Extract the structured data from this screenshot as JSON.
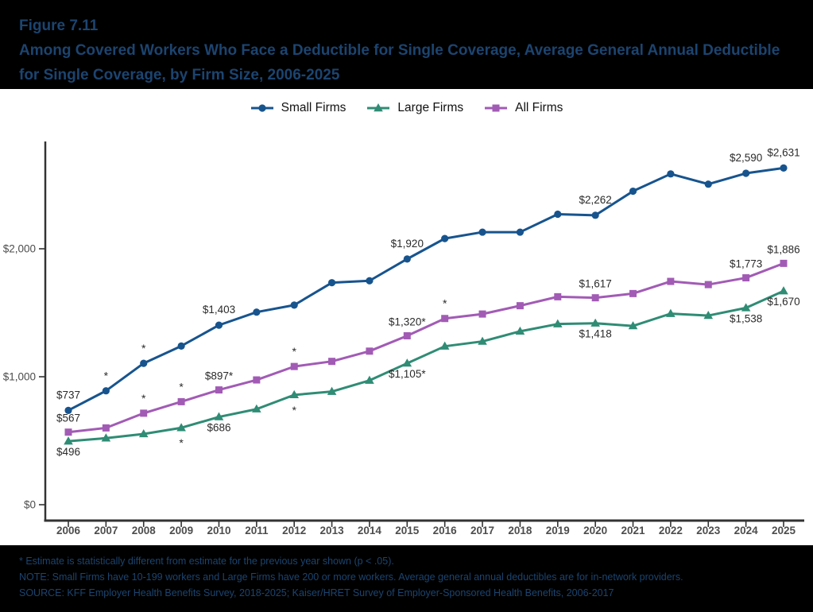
{
  "header": {
    "figure_number": "Figure 7.11",
    "title": "Among Covered Workers Who Face a Deductible for Single Coverage, Average General Annual Deductible for Single Coverage, by Firm Size, 2006-2025"
  },
  "colors": {
    "small_firms": "#17548E",
    "large_firms": "#2F8C75",
    "all_firms": "#A25BB5",
    "axis_line": "#333333",
    "tick_text": "#4d4d4d",
    "data_label_text": "#2b2b2b",
    "header_footer_background": "#000000",
    "header_footer_text": "#1c4470"
  },
  "chart_data": {
    "type": "line",
    "x": [
      2006,
      2007,
      2008,
      2009,
      2010,
      2011,
      2012,
      2013,
      2014,
      2015,
      2016,
      2017,
      2018,
      2019,
      2020,
      2021,
      2022,
      2023,
      2024,
      2025
    ],
    "series": [
      {
        "name": "Small Firms",
        "color": "#17548E",
        "marker": "circle",
        "label_side": "above",
        "values": [
          737,
          890,
          1105,
          1240,
          1403,
          1505,
          1560,
          1735,
          1750,
          1920,
          2080,
          2130,
          2130,
          2270,
          2262,
          2450,
          2585,
          2505,
          2590,
          2631
        ],
        "point_labels": {
          "2006": "$737",
          "2010": "$1,403",
          "2015": "$1,920",
          "2020": "$2,262",
          "2024": "$2,590",
          "2025": "$2,631"
        },
        "asterisk_years": [
          2007,
          2008
        ]
      },
      {
        "name": "Large Firms",
        "color": "#2F8C75",
        "marker": "triangle",
        "label_side": "below",
        "values": [
          496,
          520,
          553,
          601,
          686,
          747,
          858,
          884,
          971,
          1105,
          1238,
          1276,
          1355,
          1412,
          1418,
          1397,
          1493,
          1478,
          1538,
          1670
        ],
        "point_labels": {
          "2006": "$496",
          "2010": "$686",
          "2015": "$1,105*",
          "2020": "$1,418",
          "2024": "$1,538",
          "2025": "$1,670"
        },
        "asterisk_years": [
          2009,
          2012
        ]
      },
      {
        "name": "All Firms",
        "color": "#A25BB5",
        "marker": "square",
        "label_side": "above",
        "values": [
          567,
          600,
          715,
          805,
          897,
          975,
          1080,
          1120,
          1200,
          1320,
          1455,
          1490,
          1555,
          1625,
          1617,
          1650,
          1745,
          1720,
          1773,
          1886
        ],
        "point_labels": {
          "2006": "$567",
          "2010": "$897*",
          "2015": "$1,320*",
          "2020": "$1,617",
          "2024": "$1,773",
          "2025": "$1,886"
        },
        "asterisk_years": [
          2008,
          2009,
          2012,
          2016
        ]
      }
    ],
    "y_ticks": [
      {
        "value": 0,
        "label": "$0"
      },
      {
        "value": 1000,
        "label": "$1,000"
      },
      {
        "value": 2000,
        "label": "$2,000"
      }
    ],
    "ylim": [
      0,
      2840
    ],
    "grid": false,
    "legend_position": "top"
  },
  "footnotes": [
    "* Estimate is statistically different from estimate for the previous year shown (p < .05).",
    "NOTE: Small Firms have 10-199 workers and Large Firms have 200 or more workers. Average general annual deductibles are for in-network providers.",
    "SOURCE: KFF Employer Health Benefits Survey, 2018-2025; Kaiser/HRET Survey of Employer-Sponsored Health Benefits, 2006-2017"
  ]
}
